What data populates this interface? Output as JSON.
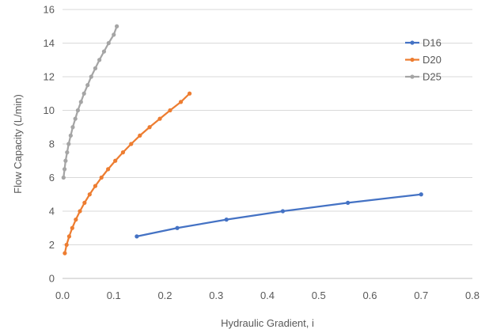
{
  "chart_data": {
    "type": "line",
    "title": "",
    "xlabel": "Hydraulic Gradient, i",
    "ylabel": "Flow Capacity (L/min)",
    "xlim": [
      0,
      0.8
    ],
    "ylim": [
      0,
      16
    ],
    "xticks": [
      "0.0",
      "0.1",
      "0.2",
      "0.3",
      "0.4",
      "0.5",
      "0.6",
      "0.7",
      "0.8"
    ],
    "yticks": [
      "0",
      "2",
      "4",
      "6",
      "8",
      "10",
      "12",
      "14",
      "16"
    ],
    "grid": "horizontal",
    "legend_position": "top-right",
    "series": [
      {
        "name": "D16",
        "color": "#4472c4",
        "x": [
          0.145,
          0.224,
          0.32,
          0.43,
          0.557,
          0.7
        ],
        "y": [
          2.5,
          3.0,
          3.5,
          4.0,
          4.5,
          5.0
        ]
      },
      {
        "name": "D20",
        "color": "#ed7d31",
        "x": [
          0.0045,
          0.008,
          0.013,
          0.019,
          0.026,
          0.034,
          0.043,
          0.053,
          0.064,
          0.076,
          0.089,
          0.103,
          0.118,
          0.134,
          0.151,
          0.17,
          0.19,
          0.21,
          0.231,
          0.248
        ],
        "y": [
          1.5,
          2.0,
          2.5,
          3.0,
          3.5,
          4.0,
          4.5,
          5.0,
          5.5,
          6.0,
          6.5,
          7.0,
          7.5,
          8.0,
          8.5,
          9.0,
          9.5,
          10.0,
          10.5,
          11.0
        ]
      },
      {
        "name": "D25",
        "color": "#a5a5a5",
        "x": [
          0.002,
          0.004,
          0.006,
          0.009,
          0.012,
          0.016,
          0.02,
          0.025,
          0.03,
          0.036,
          0.042,
          0.049,
          0.056,
          0.064,
          0.072,
          0.081,
          0.09,
          0.1,
          0.106
        ],
        "y": [
          6.0,
          6.5,
          7.0,
          7.5,
          8.0,
          8.5,
          9.0,
          9.5,
          10.0,
          10.5,
          11.0,
          11.5,
          12.0,
          12.5,
          13.0,
          13.5,
          14.0,
          14.5,
          15.0
        ]
      }
    ]
  }
}
